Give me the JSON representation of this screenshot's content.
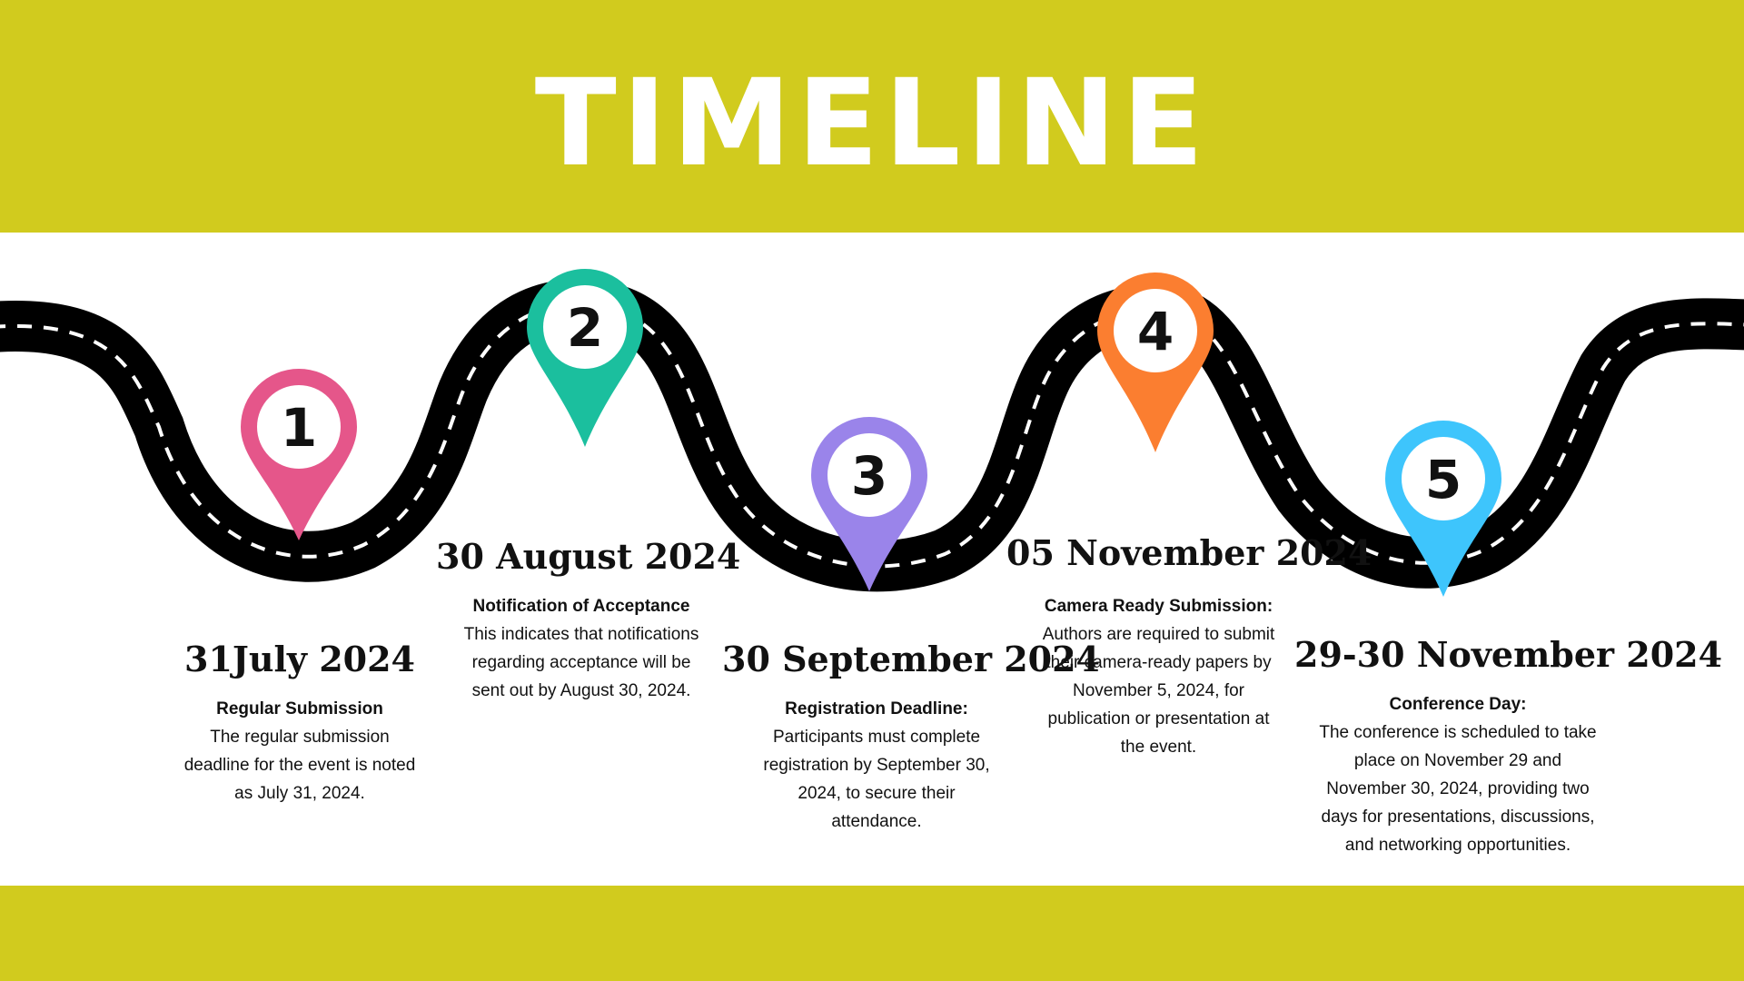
{
  "title": "TIMELINE",
  "colors": {
    "band": "#d1cb1e",
    "road": "#000000",
    "lane_marking": "#ffffff",
    "pin_1": "#e5568a",
    "pin_2": "#1bbf9e",
    "pin_3": "#9a84ea",
    "pin_4": "#fb7e30",
    "pin_5": "#3ec5fc"
  },
  "icons": [
    "map-pin-icon",
    "road-illustration"
  ],
  "milestones": [
    {
      "number": "1",
      "date": "31July 2024",
      "heading": "Regular Submission",
      "description": "The regular submission deadline for the event is noted as July 31, 2024."
    },
    {
      "number": "2",
      "date": "30 August 2024",
      "heading": "Notification of Acceptance",
      "description": "This indicates that notifications regarding acceptance will be sent out by August 30, 2024."
    },
    {
      "number": "3",
      "date": "30 September 2024",
      "heading": "Registration Deadline:",
      "description": "Participants must complete registration by September 30, 2024, to secure their attendance."
    },
    {
      "number": "4",
      "date": "05 November 2024",
      "heading": "Camera Ready Submission:",
      "description": "Authors are required to submit their camera-ready papers by November 5, 2024, for publication or presentation at the event."
    },
    {
      "number": "5",
      "date": "29-30 November 2024",
      "heading": "Conference Day:",
      "description": "The conference is scheduled to take place on November 29 and November 30, 2024, providing two days for presentations, discussions, and networking opportunities."
    }
  ]
}
